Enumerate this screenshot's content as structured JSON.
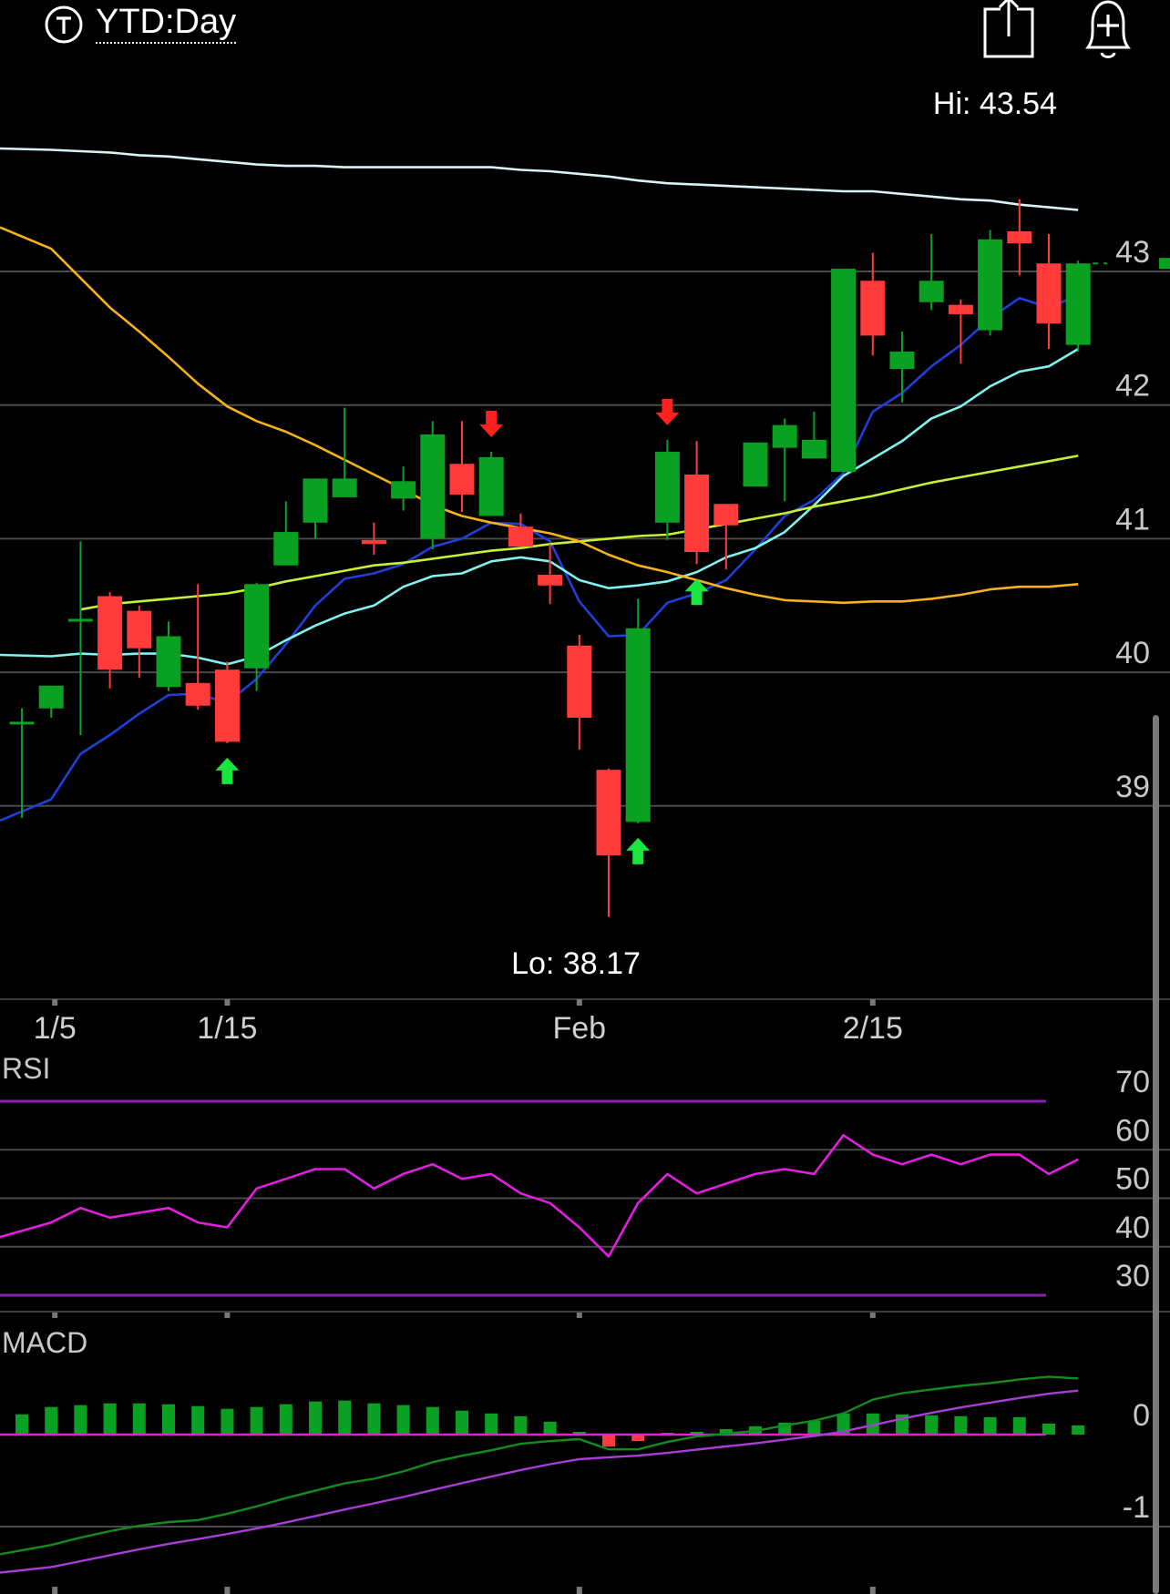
{
  "header": {
    "period_label": "YTD:Day",
    "type_icon": "t-circle-icon",
    "share_icon": "share-icon",
    "alert_icon": "add-alert-bell-icon"
  },
  "colors": {
    "up": "#0aa022",
    "down": "#ff3b3b",
    "sma5": "#1f3fd8",
    "sma10": "#7ff3f0",
    "sma20": "#c8f032",
    "sma50": "#f5b21a",
    "sma200": "#d8f2f6",
    "rsi": "#e41ee0",
    "band": "#8a22b0",
    "macd": "#128c1e",
    "signal": "#a63ed6",
    "grid": "#4a4a4a",
    "buy_arrow": "#19e63c",
    "sell_arrow": "#ff2020"
  },
  "chart_data": [
    {
      "type": "candlestick",
      "title": "YTD:Day",
      "hi_label": "Hi: 43.54",
      "lo_label": "Lo: 38.17",
      "y_ticks": [
        "43",
        "42",
        "41",
        "40",
        "39"
      ],
      "y_tick_values": [
        43,
        42,
        41,
        40,
        39
      ],
      "x_tick_labels": [
        "1/5",
        "1/15",
        "Feb",
        "2/15"
      ],
      "x_tick_index": [
        1,
        7,
        19,
        29
      ],
      "ylim": [
        37.5,
        44.2
      ],
      "candles": [
        {
          "o": 39.63,
          "h": 39.73,
          "l": 38.91,
          "c": 39.63
        },
        {
          "o": 39.73,
          "h": 39.9,
          "l": 39.66,
          "c": 39.9
        },
        {
          "o": 40.4,
          "h": 40.98,
          "l": 39.53,
          "c": 40.4
        },
        {
          "o": 40.57,
          "h": 40.6,
          "l": 39.88,
          "c": 40.02
        },
        {
          "o": 40.46,
          "h": 40.5,
          "l": 39.96,
          "c": 40.18
        },
        {
          "o": 39.89,
          "h": 40.38,
          "l": 39.86,
          "c": 40.27
        },
        {
          "o": 39.92,
          "h": 40.66,
          "l": 39.72,
          "c": 39.75
        },
        {
          "o": 40.02,
          "h": 40.08,
          "l": 39.47,
          "c": 39.48
        },
        {
          "o": 40.03,
          "h": 40.67,
          "l": 39.86,
          "c": 40.66
        },
        {
          "o": 40.8,
          "h": 41.28,
          "l": 40.8,
          "c": 41.05
        },
        {
          "o": 41.12,
          "h": 41.45,
          "l": 41.0,
          "c": 41.45
        },
        {
          "o": 41.31,
          "h": 41.98,
          "l": 41.31,
          "c": 41.45
        },
        {
          "o": 40.99,
          "h": 41.12,
          "l": 40.88,
          "c": 40.96
        },
        {
          "o": 41.3,
          "h": 41.54,
          "l": 41.21,
          "c": 41.43
        },
        {
          "o": 41.0,
          "h": 41.88,
          "l": 40.92,
          "c": 41.78
        },
        {
          "o": 41.56,
          "h": 41.88,
          "l": 41.2,
          "c": 41.33
        },
        {
          "o": 41.17,
          "h": 41.65,
          "l": 41.17,
          "c": 41.61
        },
        {
          "o": 41.09,
          "h": 41.19,
          "l": 40.95,
          "c": 40.94
        },
        {
          "o": 40.73,
          "h": 40.96,
          "l": 40.51,
          "c": 40.65
        },
        {
          "o": 40.2,
          "h": 40.28,
          "l": 39.42,
          "c": 39.66
        },
        {
          "o": 39.27,
          "h": 39.28,
          "l": 38.17,
          "c": 38.63
        },
        {
          "o": 38.88,
          "h": 40.55,
          "l": 38.87,
          "c": 40.33
        },
        {
          "o": 41.12,
          "h": 41.74,
          "l": 40.99,
          "c": 41.65
        },
        {
          "o": 41.48,
          "h": 41.73,
          "l": 40.81,
          "c": 40.9
        },
        {
          "o": 41.26,
          "h": 41.26,
          "l": 40.77,
          "c": 41.1
        },
        {
          "o": 41.39,
          "h": 41.72,
          "l": 41.39,
          "c": 41.72
        },
        {
          "o": 41.68,
          "h": 41.9,
          "l": 41.28,
          "c": 41.85
        },
        {
          "o": 41.6,
          "h": 41.95,
          "l": 41.61,
          "c": 41.74
        },
        {
          "o": 41.5,
          "h": 43.02,
          "l": 41.5,
          "c": 43.02
        },
        {
          "o": 42.93,
          "h": 43.14,
          "l": 42.37,
          "c": 42.52
        },
        {
          "o": 42.27,
          "h": 42.55,
          "l": 42.02,
          "c": 42.4
        },
        {
          "o": 42.77,
          "h": 43.28,
          "l": 42.71,
          "c": 42.93
        },
        {
          "o": 42.75,
          "h": 42.79,
          "l": 42.31,
          "c": 42.68
        },
        {
          "o": 42.56,
          "h": 43.31,
          "l": 42.52,
          "c": 43.24
        },
        {
          "o": 43.3,
          "h": 43.54,
          "l": 42.97,
          "c": 43.21
        },
        {
          "o": 43.06,
          "h": 43.28,
          "l": 42.42,
          "c": 42.61
        },
        {
          "o": 42.45,
          "h": 43.08,
          "l": 42.4,
          "c": 43.06
        }
      ],
      "moving_averages": [
        {
          "name": "SMA5",
          "start": 0,
          "values": [
            38.89,
            39.05,
            39.39,
            39.53,
            39.69,
            39.83,
            39.84,
            39.77,
            39.95,
            40.21,
            40.5,
            40.7,
            40.74,
            40.81,
            40.94,
            41.0,
            41.12,
            41.11,
            40.98,
            40.53,
            40.27,
            40.28,
            40.52,
            40.59,
            40.69,
            40.92,
            41.17,
            41.29,
            41.49,
            41.95,
            42.09,
            42.29,
            42.45,
            42.65,
            42.8,
            42.73,
            42.82
          ]
        },
        {
          "name": "SMA10",
          "start": 0,
          "values": [
            40.13,
            40.12,
            40.14,
            40.13,
            40.14,
            40.14,
            40.11,
            40.06,
            40.12,
            40.24,
            40.35,
            40.44,
            40.5,
            40.64,
            40.72,
            40.74,
            40.83,
            40.86,
            40.83,
            40.69,
            40.63,
            40.65,
            40.68,
            40.75,
            40.86,
            40.93,
            41.05,
            41.25,
            41.47,
            41.6,
            41.73,
            41.9,
            41.99,
            42.14,
            42.25,
            42.29,
            42.42
          ]
        },
        {
          "name": "SMA20",
          "start": 2,
          "values": [
            40.47,
            40.51,
            40.53,
            40.55,
            40.57,
            40.59,
            40.63,
            40.68,
            40.72,
            40.76,
            40.8,
            40.82,
            40.85,
            40.88,
            40.91,
            40.93,
            40.96,
            40.98,
            41.0,
            41.02,
            41.03,
            41.07,
            41.11,
            41.15,
            41.19,
            41.24,
            41.28,
            41.32,
            41.37,
            41.42,
            41.46,
            41.5,
            41.54,
            41.58,
            41.62
          ]
        },
        {
          "name": "SMA50",
          "start": 0,
          "values": [
            43.33,
            43.17,
            42.95,
            42.73,
            42.55,
            42.36,
            42.16,
            41.99,
            41.88,
            41.8,
            41.7,
            41.59,
            41.48,
            41.37,
            41.25,
            41.17,
            41.12,
            41.08,
            41.04,
            40.98,
            40.88,
            40.8,
            40.75,
            40.69,
            40.63,
            40.58,
            40.54,
            40.53,
            40.52,
            40.53,
            40.53,
            40.55,
            40.58,
            40.62,
            40.64,
            40.64,
            40.66
          ]
        },
        {
          "name": "SMA200",
          "start": 0,
          "values": [
            43.92,
            43.91,
            43.9,
            43.89,
            43.87,
            43.86,
            43.84,
            43.82,
            43.8,
            43.79,
            43.79,
            43.78,
            43.78,
            43.78,
            43.78,
            43.78,
            43.78,
            43.76,
            43.75,
            43.73,
            43.71,
            43.68,
            43.66,
            43.65,
            43.64,
            43.63,
            43.62,
            43.61,
            43.6,
            43.6,
            43.58,
            43.56,
            43.54,
            43.53,
            43.5,
            43.48,
            43.46
          ]
        }
      ],
      "signals": [
        {
          "index": 7,
          "type": "buy"
        },
        {
          "index": 16,
          "type": "sell"
        },
        {
          "index": 21,
          "type": "buy"
        },
        {
          "index": 22,
          "type": "sell"
        },
        {
          "index": 23,
          "type": "buy"
        }
      ]
    },
    {
      "type": "line",
      "title": "RSI",
      "y_ticks": [
        "70",
        "60",
        "50",
        "40",
        "30"
      ],
      "y_tick_values": [
        70,
        60,
        50,
        40,
        30
      ],
      "ylim": [
        30,
        70
      ],
      "bands": [
        70,
        30
      ],
      "values": [
        42,
        45,
        48,
        46,
        47,
        48,
        45,
        44,
        52,
        54,
        56,
        56,
        52,
        55,
        57,
        54,
        55,
        51,
        49,
        44,
        38,
        49,
        55,
        51,
        53,
        55,
        56,
        55,
        63,
        59,
        57,
        59,
        57,
        59,
        59,
        55,
        58
      ]
    },
    {
      "type": "bar",
      "title": "MACD",
      "y_ticks": [
        "0",
        "-1"
      ],
      "y_tick_values": [
        0,
        -1
      ],
      "ylim": [
        -1.35,
        0.7
      ],
      "histogram": [
        0.22,
        0.3,
        0.32,
        0.34,
        0.34,
        0.33,
        0.31,
        0.28,
        0.3,
        0.33,
        0.36,
        0.37,
        0.34,
        0.32,
        0.3,
        0.26,
        0.23,
        0.2,
        0.14,
        0.03,
        -0.13,
        -0.07,
        0.02,
        0.03,
        0.06,
        0.09,
        0.13,
        0.15,
        0.23,
        0.23,
        0.22,
        0.21,
        0.2,
        0.19,
        0.19,
        0.12,
        0.1
      ],
      "macd": [
        -1.3,
        -1.2,
        -1.12,
        -1.05,
        -0.99,
        -0.95,
        -0.93,
        -0.86,
        -0.78,
        -0.69,
        -0.61,
        -0.53,
        -0.48,
        -0.4,
        -0.3,
        -0.23,
        -0.17,
        -0.1,
        -0.07,
        -0.05,
        -0.16,
        -0.16,
        -0.08,
        -0.02,
        0.01,
        0.04,
        0.1,
        0.15,
        0.23,
        0.38,
        0.45,
        0.49,
        0.53,
        0.56,
        0.6,
        0.63,
        0.61
      ]
    }
  ]
}
